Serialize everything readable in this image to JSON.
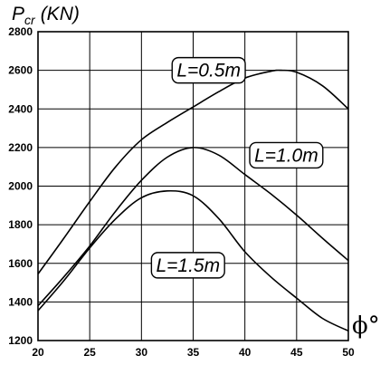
{
  "chart_data": {
    "type": "line",
    "ylabel": {
      "main": "P",
      "sub": "cr",
      "unit": "(KN)"
    },
    "xlabel": "ϕ°",
    "xlim": [
      20,
      50
    ],
    "ylim": [
      1200,
      2800
    ],
    "xticks": [
      20,
      25,
      30,
      35,
      40,
      45,
      50
    ],
    "yticks": [
      1200,
      1400,
      1600,
      1800,
      2000,
      2200,
      2400,
      2600,
      2800
    ],
    "grid": true,
    "legend": "inline-labels",
    "series": [
      {
        "name": "L=0.5m",
        "x": [
          20,
          22.5,
          25,
          27.5,
          30,
          32.5,
          35,
          37.5,
          40,
          42.5,
          43.5,
          45,
          47.5,
          50
        ],
        "y": [
          1545,
          1730,
          1920,
          2100,
          2240,
          2330,
          2410,
          2490,
          2560,
          2595,
          2600,
          2590,
          2520,
          2400
        ]
      },
      {
        "name": "L=1.0m",
        "x": [
          20,
          22.5,
          25,
          27.5,
          30,
          32.5,
          35,
          37.5,
          40,
          42.5,
          45,
          47.5,
          50
        ],
        "y": [
          1380,
          1530,
          1690,
          1870,
          2030,
          2150,
          2200,
          2160,
          2060,
          1960,
          1850,
          1730,
          1615
        ]
      },
      {
        "name": "L=1.5m",
        "x": [
          20,
          22.5,
          25,
          27.5,
          30,
          32.5,
          35,
          37.5,
          40,
          42.5,
          45,
          47.5,
          50
        ],
        "y": [
          1355,
          1510,
          1680,
          1830,
          1940,
          1975,
          1950,
          1830,
          1660,
          1530,
          1420,
          1315,
          1250
        ]
      }
    ],
    "annotations": [
      {
        "text": "L=0.5m",
        "x": 36.5,
        "y": 2600
      },
      {
        "text": "L=1.0m",
        "x": 44,
        "y": 2160
      },
      {
        "text": "L=1.5m",
        "x": 34.5,
        "y": 1590
      }
    ]
  }
}
